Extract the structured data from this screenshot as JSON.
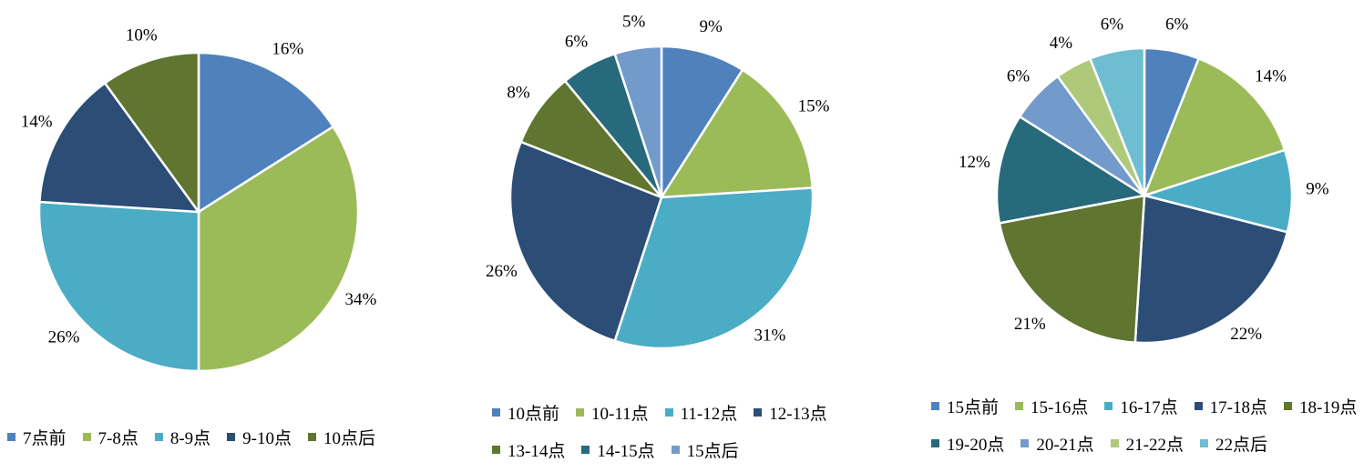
{
  "chart_data": [
    {
      "type": "pie",
      "categories": [
        "7点前",
        "7-8点",
        "8-9点",
        "9-10点",
        "10点后"
      ],
      "values": [
        16,
        34,
        26,
        14,
        10
      ],
      "value_labels": [
        "16%",
        "34%",
        "26%",
        "14%",
        "10%"
      ],
      "colors": [
        "#4f81bd",
        "#9bbb59",
        "#4bacc6",
        "#2c4d75",
        "#5f7530"
      ],
      "legend": "bottom"
    },
    {
      "type": "pie",
      "categories": [
        "10点前",
        "10-11点",
        "11-12点",
        "12-13点",
        "13-14点",
        "14-15点",
        "15点后"
      ],
      "values": [
        9,
        15,
        31,
        26,
        8,
        6,
        5
      ],
      "value_labels": [
        "9%",
        "15%",
        "31%",
        "26%",
        "8%",
        "6%",
        "5%"
      ],
      "colors": [
        "#4f81bd",
        "#9bbb59",
        "#4bacc6",
        "#2c4d75",
        "#5f7530",
        "#276a7c",
        "#729aca"
      ],
      "legend": "bottom"
    },
    {
      "type": "pie",
      "categories": [
        "15点前",
        "15-16点",
        "16-17点",
        "17-18点",
        "18-19点",
        "19-20点",
        "20-21点",
        "21-22点",
        "22点后"
      ],
      "values": [
        6,
        14,
        9,
        22,
        21,
        12,
        6,
        4,
        6
      ],
      "value_labels": [
        "6%",
        "14%",
        "9%",
        "22%",
        "21%",
        "12%",
        "6%",
        "4%",
        "6%"
      ],
      "colors": [
        "#4f81bd",
        "#9bbb59",
        "#4bacc6",
        "#2c4d75",
        "#5f7530",
        "#276a7c",
        "#729aca",
        "#afc97a",
        "#6fbdd1"
      ],
      "legend": "bottom"
    }
  ]
}
